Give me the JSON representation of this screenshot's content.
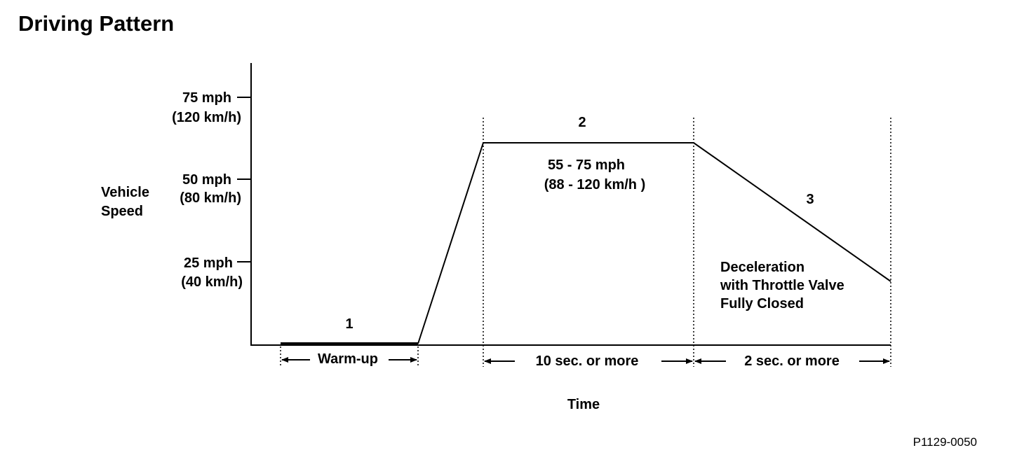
{
  "title": "Driving Pattern",
  "y_axis": {
    "label_line1": "Vehicle",
    "label_line2": "Speed",
    "ticks": [
      {
        "mph": "75 mph",
        "kmh": "(120 km/h)"
      },
      {
        "mph": "50 mph",
        "kmh": "(80 km/h)"
      },
      {
        "mph": "25 mph",
        "kmh": "(40 km/h)"
      }
    ]
  },
  "x_axis": {
    "label": "Time"
  },
  "phases": [
    {
      "number": "1",
      "duration": "Warm-up"
    },
    {
      "number": "2",
      "speed_line1": "55 - 75 mph",
      "speed_line2": "(88 - 120 km/h )",
      "duration": "10 sec. or more"
    },
    {
      "number": "3",
      "desc_line1": "Deceleration",
      "desc_line2": "with Throttle Valve",
      "desc_line3": "Fully Closed",
      "duration": "2 sec. or more"
    }
  ],
  "reference": "P1129-0050"
}
